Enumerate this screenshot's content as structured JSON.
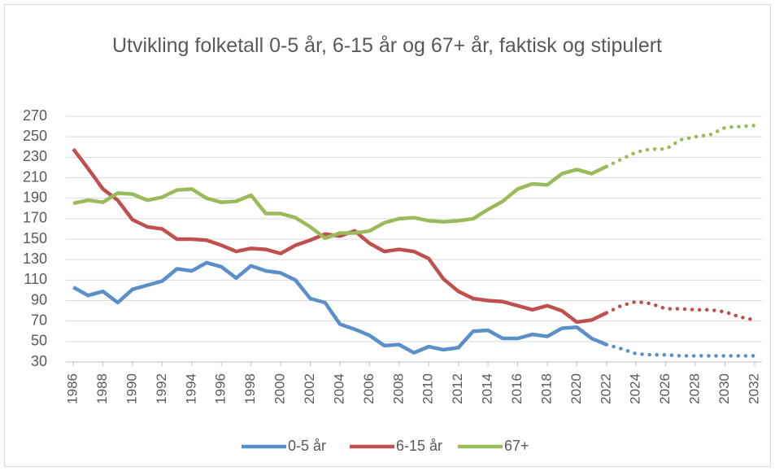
{
  "chart_data": {
    "type": "line",
    "title": "Utvikling folketall 0-5 år, 6-15 år og 67+ år, faktisk og stipulert",
    "x": [
      1986,
      1987,
      1988,
      1989,
      1990,
      1991,
      1992,
      1993,
      1994,
      1995,
      1996,
      1997,
      1998,
      1999,
      2000,
      2001,
      2002,
      2003,
      2004,
      2005,
      2006,
      2007,
      2008,
      2009,
      2010,
      2011,
      2012,
      2013,
      2014,
      2015,
      2016,
      2017,
      2018,
      2019,
      2020,
      2021,
      2022,
      2023,
      2024,
      2025,
      2026,
      2027,
      2028,
      2029,
      2030,
      2031,
      2032
    ],
    "series": [
      {
        "name": "0-5 år",
        "color": "#5b8fc9",
        "values": [
          103,
          95,
          99,
          88,
          101,
          105,
          109,
          121,
          119,
          127,
          123,
          112,
          124,
          119,
          117,
          110,
          92,
          88,
          67,
          62,
          56,
          46,
          47,
          39,
          45,
          42,
          44,
          60,
          61,
          53,
          53,
          57,
          55,
          63,
          64,
          53,
          47,
          43,
          38,
          37,
          37,
          36,
          36,
          36,
          36,
          36,
          36
        ]
      },
      {
        "name": "6-15 år",
        "color": "#c0504d",
        "values": [
          238,
          219,
          199,
          188,
          169,
          162,
          160,
          150,
          150,
          149,
          144,
          138,
          141,
          140,
          136,
          144,
          149,
          155,
          153,
          158,
          146,
          138,
          140,
          138,
          131,
          111,
          99,
          92,
          90,
          89,
          85,
          81,
          85,
          80,
          69,
          71,
          78,
          85,
          89,
          87,
          82,
          82,
          81,
          81,
          79,
          74,
          71
        ]
      },
      {
        "name": "67+",
        "color": "#9bbb59",
        "values": [
          185,
          188,
          186,
          195,
          194,
          188,
          191,
          198,
          199,
          190,
          186,
          187,
          193,
          175,
          175,
          171,
          162,
          151,
          156,
          156,
          158,
          166,
          170,
          171,
          168,
          167,
          168,
          170,
          179,
          187,
          199,
          204,
          203,
          214,
          218,
          214,
          221,
          228,
          235,
          238,
          238,
          247,
          250,
          252,
          259,
          260,
          261
        ]
      }
    ],
    "projection_start": 2022,
    "xlim": [
      1985.5,
      2032.5
    ],
    "xticks": [
      1986,
      1988,
      1990,
      1992,
      1994,
      1996,
      1998,
      2000,
      2002,
      2004,
      2006,
      2008,
      2010,
      2012,
      2014,
      2016,
      2018,
      2020,
      2022,
      2024,
      2026,
      2028,
      2030,
      2032
    ],
    "ylim": [
      30,
      270
    ],
    "yticks": [
      30,
      50,
      70,
      90,
      110,
      130,
      150,
      170,
      190,
      210,
      230,
      250,
      270
    ],
    "grid": true,
    "legend": "bottom"
  }
}
